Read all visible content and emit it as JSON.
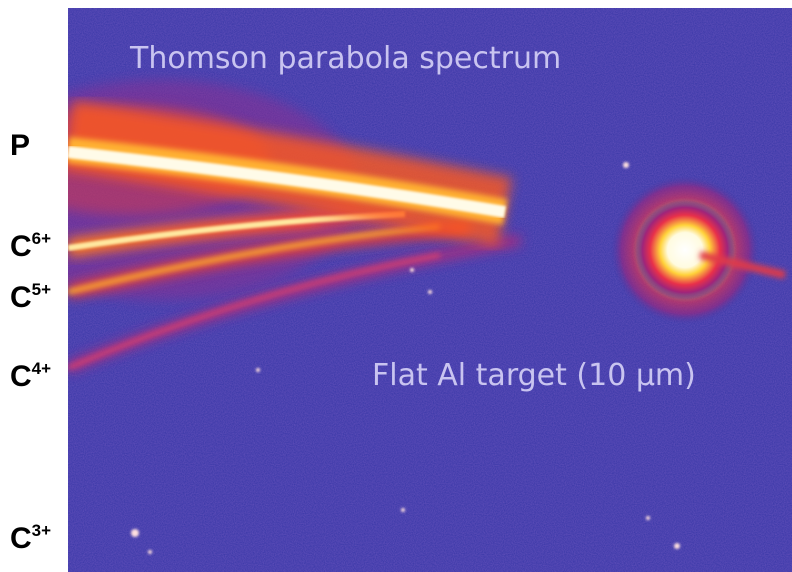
{
  "title": "Thomson parabola spectrum",
  "annotation": "Flat Al target (10 µm)",
  "labels": [
    {
      "text": "P"
    },
    {
      "text": "C",
      "sup": "6+"
    },
    {
      "text": "C",
      "sup": "5+"
    },
    {
      "text": "C",
      "sup": "4+"
    },
    {
      "text": "C",
      "sup": "3+"
    }
  ]
}
